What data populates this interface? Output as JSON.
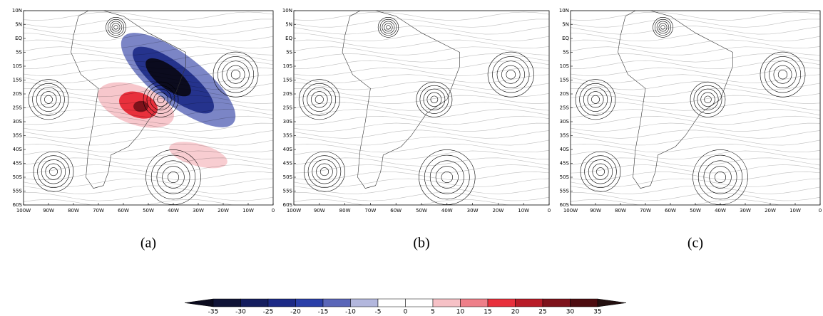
{
  "chart_data": [
    {
      "type": "streamline-map",
      "caption": "(a)",
      "xlim": [
        -100,
        0
      ],
      "ylim": [
        -60,
        10
      ],
      "xticks": [
        {
          "value": -100,
          "label": "100W"
        },
        {
          "value": -90,
          "label": "90W"
        },
        {
          "value": -80,
          "label": "80W"
        },
        {
          "value": -70,
          "label": "70W"
        },
        {
          "value": -60,
          "label": "60W"
        },
        {
          "value": -50,
          "label": "50W"
        },
        {
          "value": -40,
          "label": "40W"
        },
        {
          "value": -30,
          "label": "30W"
        },
        {
          "value": -20,
          "label": "20W"
        },
        {
          "value": -10,
          "label": "10W"
        },
        0
      ],
      "yticks": [
        {
          "value": 10,
          "label": "10N"
        },
        {
          "value": 5,
          "label": "5N"
        },
        {
          "value": 0,
          "label": "EQ"
        },
        {
          "value": -5,
          "label": "5S"
        },
        {
          "value": -10,
          "label": "10S"
        },
        {
          "value": -15,
          "label": "15S"
        },
        {
          "value": -20,
          "label": "20S"
        },
        {
          "value": -25,
          "label": "25S"
        },
        {
          "value": -30,
          "label": "30S"
        },
        {
          "value": -35,
          "label": "35S"
        },
        {
          "value": -40,
          "label": "40S"
        },
        {
          "value": -45,
          "label": "45S"
        },
        {
          "value": -50,
          "label": "50S"
        },
        {
          "value": -55,
          "label": "55S"
        },
        {
          "value": -60,
          "label": "60S"
        }
      ]
    },
    {
      "type": "streamline-map",
      "caption": "(b)",
      "xlim": [
        -100,
        0
      ],
      "ylim": [
        -60,
        10
      ],
      "xticks": [
        {
          "value": -100,
          "label": "100W"
        },
        {
          "value": -90,
          "label": "90W"
        },
        {
          "value": -80,
          "label": "80W"
        },
        {
          "value": -70,
          "label": "70W"
        },
        {
          "value": -60,
          "label": "60W"
        },
        {
          "value": -50,
          "label": "50W"
        },
        {
          "value": -40,
          "label": "40W"
        },
        {
          "value": -30,
          "label": "30W"
        },
        {
          "value": -20,
          "label": "20W"
        },
        {
          "value": -10,
          "label": "10W"
        },
        0
      ],
      "yticks": [
        {
          "value": 10,
          "label": "10N"
        },
        {
          "value": 5,
          "label": "5N"
        },
        {
          "value": 0,
          "label": "EQ"
        },
        {
          "value": -5,
          "label": "5S"
        },
        {
          "value": -10,
          "label": "10S"
        },
        {
          "value": -15,
          "label": "15S"
        },
        {
          "value": -20,
          "label": "20S"
        },
        {
          "value": -25,
          "label": "25S"
        },
        {
          "value": -30,
          "label": "30S"
        },
        {
          "value": -35,
          "label": "35S"
        },
        {
          "value": -40,
          "label": "40S"
        },
        {
          "value": -45,
          "label": "45S"
        },
        {
          "value": -50,
          "label": "50S"
        },
        {
          "value": -55,
          "label": "55S"
        },
        {
          "value": -60,
          "label": "60S"
        }
      ]
    },
    {
      "type": "streamline-map",
      "caption": "(c)",
      "xlim": [
        -100,
        0
      ],
      "ylim": [
        -60,
        10
      ],
      "xticks": [
        {
          "value": -100,
          "label": "100W"
        },
        {
          "value": -90,
          "label": "90W"
        },
        {
          "value": -80,
          "label": "80W"
        },
        {
          "value": -70,
          "label": "70W"
        },
        {
          "value": -60,
          "label": "60W"
        },
        {
          "value": -50,
          "label": "50W"
        },
        {
          "value": -40,
          "label": "40W"
        },
        {
          "value": -30,
          "label": "30W"
        },
        {
          "value": -20,
          "label": "20W"
        },
        {
          "value": -10,
          "label": "10W"
        },
        0
      ],
      "yticks": [
        {
          "value": 10,
          "label": "10N"
        },
        {
          "value": 5,
          "label": "5N"
        },
        {
          "value": 0,
          "label": "EQ"
        },
        {
          "value": -5,
          "label": "5S"
        },
        {
          "value": -10,
          "label": "10S"
        },
        {
          "value": -15,
          "label": "15S"
        },
        {
          "value": -20,
          "label": "20S"
        },
        {
          "value": -25,
          "label": "25S"
        },
        {
          "value": -30,
          "label": "30S"
        },
        {
          "value": -35,
          "label": "35S"
        },
        {
          "value": -40,
          "label": "40S"
        },
        {
          "value": -45,
          "label": "45S"
        },
        {
          "value": -50,
          "label": "50S"
        },
        {
          "value": -55,
          "label": "55S"
        },
        {
          "value": -60,
          "label": "60S"
        }
      ]
    },
    {
      "type": "colorbar",
      "levels": [
        -35,
        -30,
        -25,
        -20,
        -15,
        -10,
        -5,
        0,
        5,
        10,
        15,
        20,
        25,
        30,
        35
      ],
      "colors": [
        "#0b0b1e",
        "#101437",
        "#141d5e",
        "#1c2a86",
        "#2a3fa8",
        "#5a66b8",
        "#b3b7dd",
        "#ffffff",
        "#ffffff",
        "#f6c1c6",
        "#ee7f89",
        "#e8303c",
        "#b81c28",
        "#7e121b",
        "#4d0c10",
        "#241010"
      ]
    }
  ]
}
